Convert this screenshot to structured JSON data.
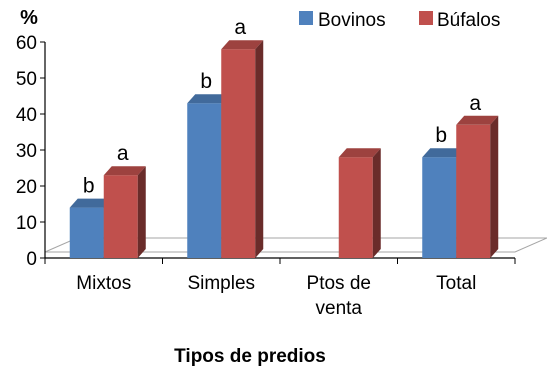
{
  "chart_data": {
    "type": "bar",
    "ylabel": "%",
    "xlabel": "Tipos de predios",
    "ylim": [
      0,
      60
    ],
    "yticks": [
      "0",
      "10",
      "20",
      "30",
      "40",
      "50",
      "60"
    ],
    "categories": [
      [
        "Mixtos"
      ],
      [
        "Simples"
      ],
      [
        "Ptos de",
        "venta"
      ],
      [
        "Total"
      ]
    ],
    "series": [
      {
        "name": "Bovinos",
        "color": "#4f81bd",
        "values": [
          14,
          43,
          null,
          28
        ],
        "letters": [
          "b",
          "b",
          "",
          "b"
        ]
      },
      {
        "name": "Búfalos",
        "color": "#c0504d",
        "values": [
          23,
          58,
          28,
          37
        ],
        "letters": [
          "a",
          "a",
          "",
          "a"
        ]
      }
    ],
    "legend": "top-right",
    "grid": false,
    "style": "3d-bar"
  }
}
